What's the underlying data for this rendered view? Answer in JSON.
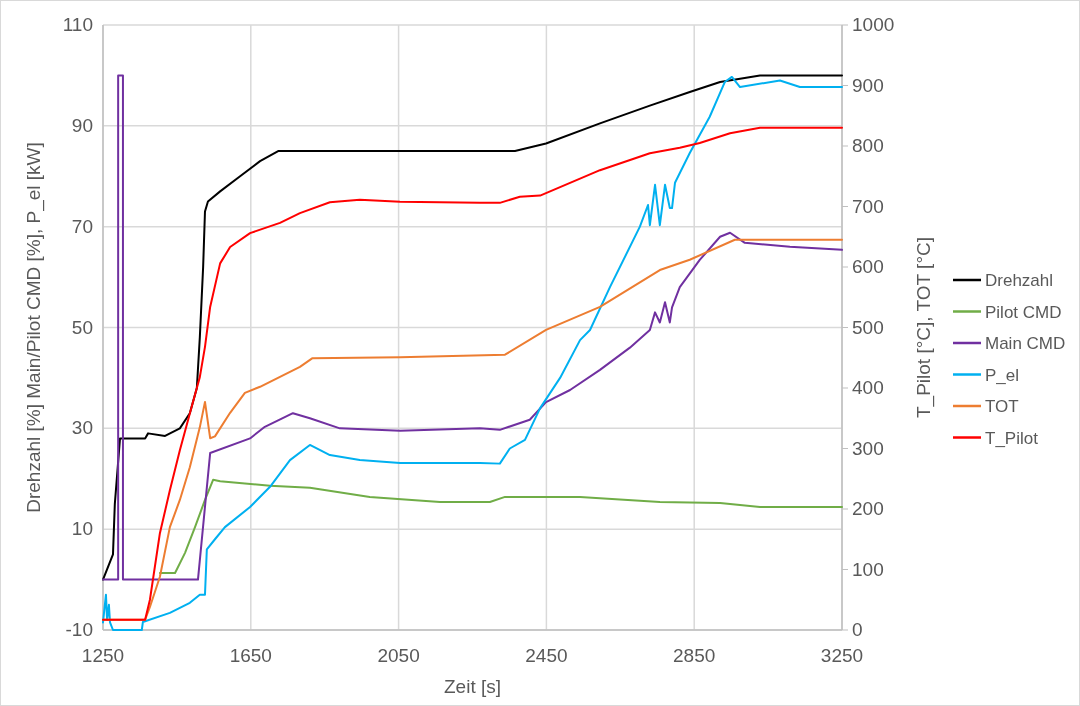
{
  "chart_data": {
    "type": "line",
    "xlabel": "Zeit [s]",
    "ylabel": "Drehzahl [%] Main/Pilot CMD [%], P_el [kW]",
    "y2label": "T_Pilot [°C], TOT [°C]",
    "xlim": [
      1250,
      3250
    ],
    "xticks": [
      1250,
      1650,
      2050,
      2450,
      2850,
      3250
    ],
    "ylim": [
      -10,
      110
    ],
    "yticks": [
      -10,
      10,
      30,
      50,
      70,
      90,
      110
    ],
    "y2lim": [
      0,
      1000
    ],
    "y2ticks": [
      0,
      100,
      200,
      300,
      400,
      500,
      600,
      700,
      800,
      900,
      1000
    ],
    "grid": true,
    "legend": "right",
    "series": [
      {
        "name": "Drehzahl",
        "color": "#000000",
        "x": [
          1250,
          1277,
          1282,
          1296,
          1364,
          1372,
          1418,
          1458,
          1485,
          1504,
          1512,
          1521,
          1526,
          1534,
          1567,
          1621,
          1675,
          1724,
          2365,
          2449,
          2595,
          2730,
          2838,
          2920,
          3028,
          3250
        ],
        "values": [
          0,
          5,
          15,
          28,
          28,
          29,
          28.5,
          30,
          33,
          38,
          48,
          62,
          73,
          75,
          77,
          80,
          83,
          85,
          85,
          86.5,
          90.5,
          94,
          96.7,
          98.7,
          100,
          100
        ]
      },
      {
        "name": "Pilot CMD",
        "color": "#70ad47",
        "x": [
          1404,
          1445,
          1472,
          1499,
          1526,
          1548,
          1567,
          1702,
          1810,
          1972,
          2162,
          2297,
          2338,
          2541,
          2757,
          2920,
          3028,
          3250
        ],
        "values": [
          1.3,
          1.3,
          5.3,
          10.4,
          15.8,
          19.8,
          19.5,
          18.6,
          18.2,
          16.4,
          15.4,
          15.4,
          16.4,
          16.4,
          15.4,
          15.2,
          14.4,
          14.4
        ]
      },
      {
        "name": "Main CMD",
        "color": "#7030a0",
        "x": [
          1250,
          1291,
          1291,
          1304,
          1304,
          1507,
          1540,
          1648,
          1688,
          1764,
          1810,
          1891,
          2054,
          2270,
          2324,
          2405,
          2449,
          2514,
          2595,
          2676,
          2730,
          2744,
          2757,
          2771,
          2784,
          2790,
          2811,
          2865,
          2920,
          2947,
          2987,
          3109,
          3250
        ],
        "values": [
          0,
          0,
          100,
          100,
          0,
          0,
          25.1,
          28,
          30.3,
          33,
          32,
          30,
          29.5,
          30,
          29.7,
          31.7,
          35.2,
          37.6,
          41.6,
          46,
          49.5,
          53,
          51,
          55,
          51,
          54,
          58,
          63.4,
          68,
          68.8,
          66.8,
          66,
          65.4
        ]
      },
      {
        "name": "P_el",
        "color": "#00b0f0",
        "x": [
          1250,
          1258,
          1261,
          1266,
          1269,
          1277,
          1355,
          1358,
          1431,
          1485,
          1512,
          1526,
          1531,
          1553,
          1580,
          1648,
          1702,
          1756,
          1810,
          1864,
          1945,
          2054,
          2162,
          2270,
          2324,
          2351,
          2392,
          2433,
          2487,
          2541,
          2568,
          2622,
          2703,
          2725,
          2730,
          2744,
          2757,
          2771,
          2784,
          2790,
          2798,
          2838,
          2892,
          2933,
          2952,
          2974,
          3082,
          3136,
          3250
        ],
        "values": [
          -8.5,
          -3,
          -8,
          -5,
          -8.5,
          -10,
          -10,
          -8.4,
          -6.6,
          -4.6,
          -3,
          -3,
          6,
          8,
          10.4,
          14.4,
          18.4,
          23.7,
          26.7,
          24.7,
          23.7,
          23.1,
          23.1,
          23.1,
          23,
          26,
          27.7,
          34,
          40,
          47.5,
          49.5,
          58,
          70,
          74.3,
          70.3,
          78.3,
          70.3,
          78.3,
          73.7,
          73.7,
          78.7,
          84.6,
          91.8,
          98.7,
          99.7,
          97.7,
          99,
          97.7,
          97.7
        ]
      },
      {
        "name": "TOT",
        "color": "#ed7d31",
        "axis": "y2",
        "x": [
          1250,
          1364,
          1377,
          1404,
          1431,
          1458,
          1485,
          1512,
          1526,
          1540,
          1553,
          1594,
          1634,
          1675,
          1783,
          1816,
          2054,
          2338,
          2449,
          2595,
          2757,
          2838,
          2960,
          3250
        ],
        "values": [
          17,
          17,
          38,
          88,
          170,
          215,
          269,
          335,
          377,
          317,
          320,
          359,
          392,
          402,
          435,
          449,
          451,
          455,
          496,
          534,
          595,
          612,
          645,
          645
        ]
      },
      {
        "name": "T_Pilot",
        "color": "#ff0000",
        "axis": "y2",
        "x": [
          1250,
          1364,
          1377,
          1404,
          1431,
          1458,
          1485,
          1512,
          1526,
          1540,
          1567,
          1594,
          1648,
          1729,
          1783,
          1864,
          1945,
          2054,
          2270,
          2324,
          2378,
          2433,
          2595,
          2730,
          2811,
          2865,
          2947,
          3028,
          3250
        ],
        "values": [
          17,
          17,
          50,
          160,
          231,
          297,
          358,
          418,
          468,
          534,
          606,
          633,
          656,
          673,
          689,
          707,
          711,
          708,
          706,
          706,
          716,
          718,
          760,
          788,
          797,
          805,
          821,
          830,
          830
        ]
      }
    ]
  }
}
